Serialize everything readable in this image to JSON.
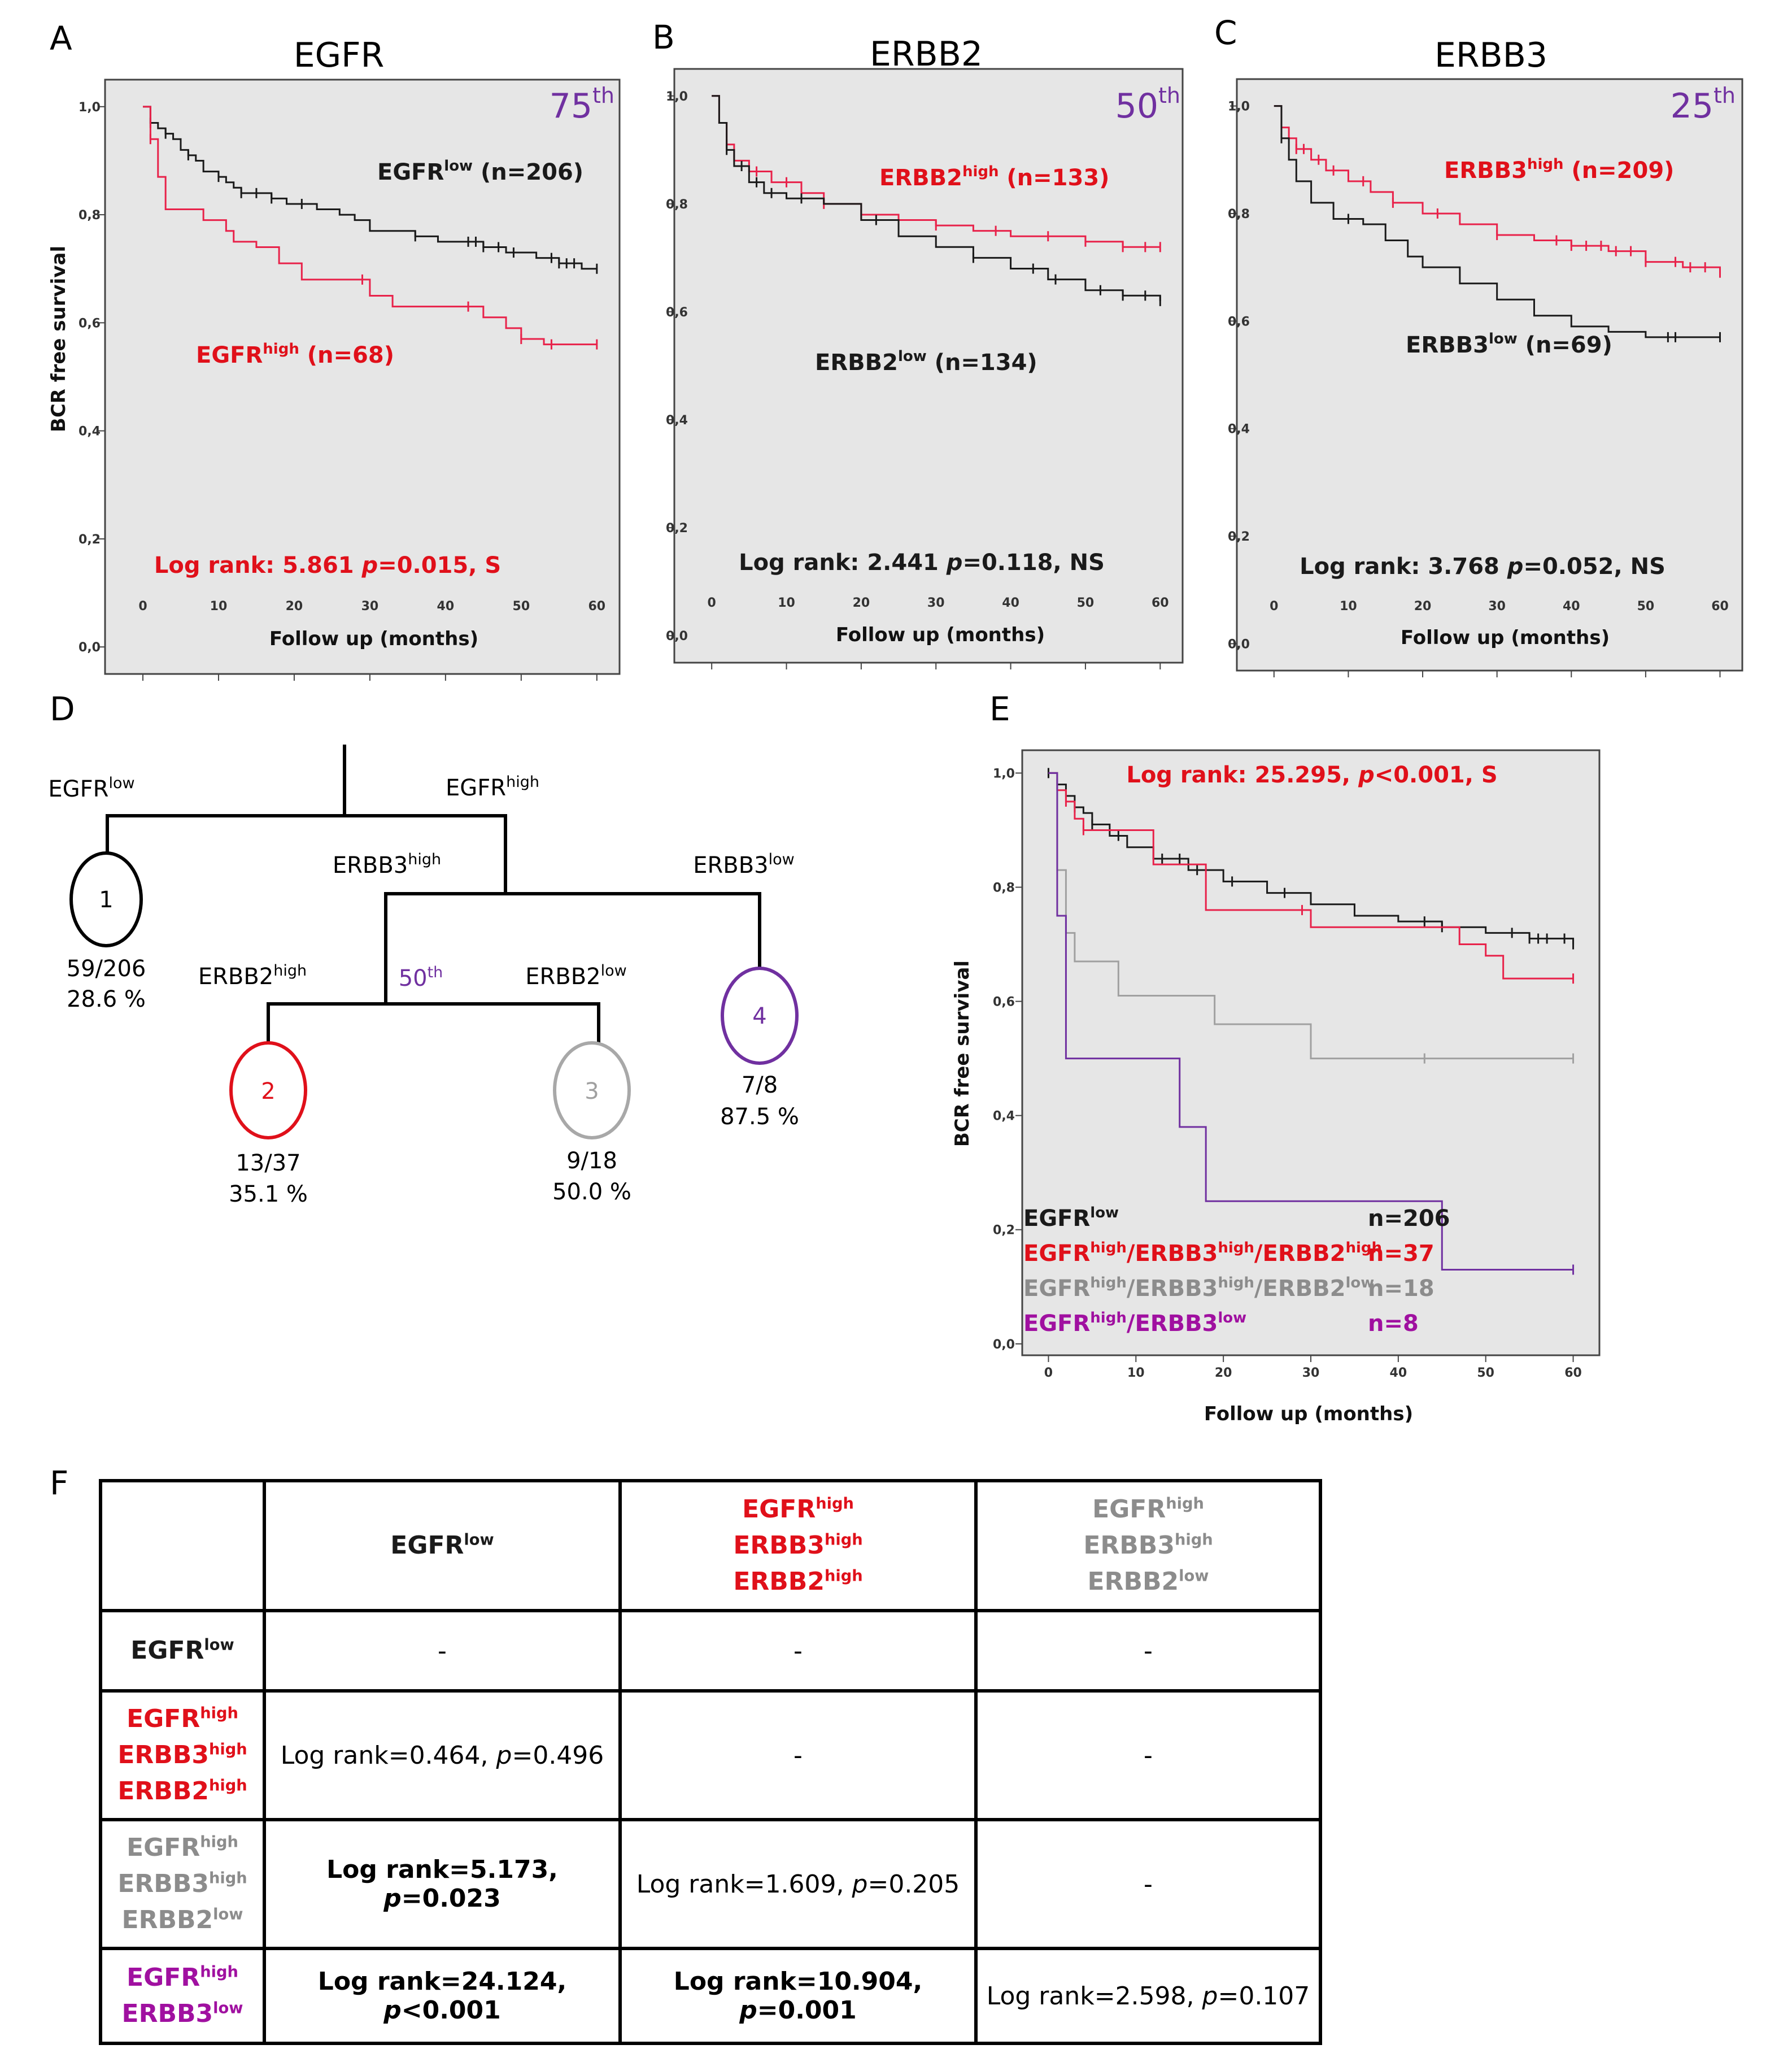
{
  "panels": {
    "A": "A",
    "B": "B",
    "C": "C",
    "D": "D",
    "E": "E",
    "F": "F"
  },
  "colors": {
    "black": "#1a1a1a",
    "red": "#e8224a",
    "annot_red": "#e0101a",
    "purple": "#7030a0",
    "magenta": "#a010a0",
    "gray": "#8c8c8c",
    "gray_line": "#a0a0a0",
    "plot_bg": "#e6e6e6"
  },
  "chart_data": [
    {
      "type": "line",
      "panel": "A",
      "title": "EGFR",
      "percentile": "75",
      "percentile_suffix": "th",
      "xlabel": "Follow up (months)",
      "ylabel": "BCR free survival",
      "xlim": [
        -5,
        63
      ],
      "ylim": [
        -0.05,
        1.05
      ],
      "xticks": [
        "0",
        "10",
        "20",
        "30",
        "40",
        "50",
        "60"
      ],
      "yticks": [
        "0,0",
        "0,2",
        "0,4",
        "0,6",
        "0,8",
        "1,0"
      ],
      "series": [
        {
          "name": "EGFR low",
          "label_main": "EGFR",
          "label_sup": "low",
          "label_n": " (n=206)",
          "color": "black",
          "x": [
            0,
            1,
            2,
            3,
            4,
            5,
            6,
            7,
            8,
            10,
            11,
            12,
            13,
            15,
            17,
            19,
            21,
            23,
            26,
            28,
            30,
            33,
            36,
            39,
            42,
            45,
            48,
            52,
            55,
            58,
            60
          ],
          "y": [
            1.0,
            0.97,
            0.96,
            0.95,
            0.94,
            0.92,
            0.91,
            0.9,
            0.88,
            0.87,
            0.86,
            0.85,
            0.84,
            0.84,
            0.83,
            0.82,
            0.82,
            0.81,
            0.8,
            0.79,
            0.77,
            0.77,
            0.76,
            0.75,
            0.75,
            0.74,
            0.73,
            0.72,
            0.71,
            0.7,
            0.7
          ],
          "censor_x": [
            1,
            3,
            6,
            10,
            13,
            15,
            17,
            21,
            36,
            43,
            44,
            45,
            47,
            49,
            54,
            55,
            56,
            57,
            60
          ]
        },
        {
          "name": "EGFR high",
          "label_main": "EGFR",
          "label_sup": "high",
          "label_n": " (n=68)",
          "color": "red",
          "x": [
            0,
            1,
            2,
            3,
            8,
            11,
            12,
            15,
            18,
            21,
            30,
            33,
            45,
            48,
            50,
            53,
            60
          ],
          "y": [
            1.0,
            0.94,
            0.87,
            0.81,
            0.79,
            0.77,
            0.75,
            0.74,
            0.71,
            0.68,
            0.65,
            0.63,
            0.61,
            0.59,
            0.57,
            0.56,
            0.56
          ],
          "censor_x": [
            1,
            29,
            43,
            50,
            54,
            60
          ]
        }
      ],
      "annotation": {
        "text": "Log rank: 5.861 ",
        "p_italic": "p",
        "rest": "=0.015, S",
        "color": "annot_red"
      }
    },
    {
      "type": "line",
      "panel": "B",
      "title": "ERBB2",
      "percentile": "50",
      "percentile_suffix": "th",
      "xlabel": "Follow up (months)",
      "ylabel": "",
      "xlim": [
        -5,
        63
      ],
      "ylim": [
        -0.05,
        1.05
      ],
      "xticks": [
        "0",
        "10",
        "20",
        "30",
        "40",
        "50",
        "60"
      ],
      "yticks": [
        "0,0",
        "0,2",
        "0,4",
        "0,6",
        "0,8",
        "1,0"
      ],
      "series": [
        {
          "name": "ERBB2 high",
          "label_main": "ERBB2",
          "label_sup": "high",
          "label_n": " (n=133)",
          "color": "red",
          "x": [
            0,
            1,
            2,
            3,
            5,
            8,
            12,
            15,
            20,
            25,
            30,
            35,
            40,
            45,
            50,
            55,
            60
          ],
          "y": [
            1.0,
            0.95,
            0.91,
            0.88,
            0.86,
            0.84,
            0.82,
            0.8,
            0.78,
            0.77,
            0.76,
            0.75,
            0.74,
            0.74,
            0.73,
            0.72,
            0.72
          ],
          "censor_x": [
            2,
            6,
            10,
            15,
            20,
            30,
            38,
            45,
            50,
            55,
            58,
            60
          ]
        },
        {
          "name": "ERBB2 low",
          "label_main": "ERBB2",
          "label_sup": "low",
          "label_n": " (n=134)",
          "color": "black",
          "x": [
            0,
            1,
            2,
            3,
            5,
            7,
            10,
            15,
            20,
            25,
            30,
            35,
            40,
            45,
            50,
            55,
            60
          ],
          "y": [
            1.0,
            0.95,
            0.9,
            0.87,
            0.84,
            0.82,
            0.81,
            0.8,
            0.77,
            0.74,
            0.72,
            0.7,
            0.68,
            0.66,
            0.64,
            0.63,
            0.62
          ],
          "censor_x": [
            2,
            4,
            6,
            8,
            12,
            22,
            35,
            43,
            46,
            52,
            55,
            58,
            60
          ]
        }
      ],
      "annotation": {
        "text": "Log rank: 2.441 ",
        "p_italic": "p",
        "rest": "=0.118, NS",
        "color": "black"
      }
    },
    {
      "type": "line",
      "panel": "C",
      "title": "ERBB3",
      "percentile": "25",
      "percentile_suffix": "th",
      "xlabel": "Follow up (months)",
      "ylabel": "",
      "xlim": [
        -5,
        63
      ],
      "ylim": [
        -0.05,
        1.05
      ],
      "xticks": [
        "0",
        "10",
        "20",
        "30",
        "40",
        "50",
        "60"
      ],
      "yticks": [
        "0,0",
        "0,2",
        "0,4",
        "0,6",
        "0,8",
        "1,0"
      ],
      "series": [
        {
          "name": "ERBB3 high",
          "label_main": "ERBB3",
          "label_sup": "high",
          "label_n": " (n=209)",
          "color": "red",
          "x": [
            0,
            1,
            2,
            3,
            5,
            7,
            10,
            13,
            16,
            20,
            25,
            30,
            35,
            40,
            45,
            50,
            55,
            60
          ],
          "y": [
            1.0,
            0.96,
            0.94,
            0.92,
            0.9,
            0.88,
            0.86,
            0.84,
            0.82,
            0.8,
            0.78,
            0.76,
            0.75,
            0.74,
            0.73,
            0.71,
            0.7,
            0.69
          ],
          "censor_x": [
            1,
            3,
            4,
            6,
            8,
            12,
            16,
            22,
            30,
            38,
            40,
            42,
            44,
            46,
            48,
            50,
            54,
            56,
            58,
            60
          ]
        },
        {
          "name": "ERBB3 low",
          "label_main": "ERBB3",
          "label_sup": "low",
          "label_n": " (n=69)",
          "color": "black",
          "x": [
            0,
            1,
            2,
            3,
            5,
            8,
            12,
            15,
            18,
            20,
            25,
            30,
            35,
            40,
            45,
            50,
            60
          ],
          "y": [
            1.0,
            0.94,
            0.9,
            0.86,
            0.82,
            0.79,
            0.78,
            0.75,
            0.72,
            0.7,
            0.67,
            0.64,
            0.61,
            0.59,
            0.58,
            0.57,
            0.57
          ],
          "censor_x": [
            1,
            10,
            53,
            54,
            60
          ]
        }
      ],
      "annotation": {
        "text": "Log rank: 3.768 ",
        "p_italic": "p",
        "rest": "=0.052, NS",
        "color": "black"
      }
    },
    {
      "type": "line",
      "panel": "E",
      "title": "",
      "xlabel": "Follow up (months)",
      "ylabel": "BCR free survival",
      "xlim": [
        -3,
        63
      ],
      "ylim": [
        -0.02,
        1.04
      ],
      "xticks": [
        "0",
        "10",
        "20",
        "30",
        "40",
        "50",
        "60"
      ],
      "yticks": [
        "0,0",
        "0,2",
        "0,4",
        "0,6",
        "0,8",
        "1,0"
      ],
      "series": [
        {
          "name": "EGFR low",
          "color": "black",
          "x": [
            0,
            1,
            2,
            3,
            4,
            5,
            7,
            9,
            12,
            16,
            20,
            25,
            30,
            35,
            40,
            45,
            50,
            55,
            60
          ],
          "y": [
            1.0,
            0.98,
            0.96,
            0.94,
            0.93,
            0.91,
            0.89,
            0.87,
            0.85,
            0.83,
            0.81,
            0.79,
            0.77,
            0.75,
            0.74,
            0.73,
            0.72,
            0.71,
            0.7
          ],
          "censor_x": [
            0,
            1,
            3,
            5,
            8,
            13,
            15,
            17,
            21,
            27,
            43,
            45,
            53,
            55,
            56,
            57,
            59,
            60
          ]
        },
        {
          "name": "EGFR high / ERBB3 high / ERBB2 high",
          "color": "red",
          "x": [
            0,
            1,
            2,
            3,
            4,
            12,
            18,
            30,
            47,
            50,
            52,
            60
          ],
          "y": [
            1.0,
            0.97,
            0.95,
            0.92,
            0.9,
            0.84,
            0.76,
            0.73,
            0.7,
            0.68,
            0.64,
            0.64
          ],
          "censor_x": [
            2,
            4,
            29,
            60
          ]
        },
        {
          "name": "EGFR high / ERBB3 high / ERBB2 low",
          "color": "gray_line",
          "x": [
            0,
            1,
            2,
            3,
            8,
            19,
            30,
            60
          ],
          "y": [
            1.0,
            0.83,
            0.72,
            0.67,
            0.61,
            0.56,
            0.5,
            0.5
          ],
          "censor_x": [
            43,
            60
          ]
        },
        {
          "name": "EGFR high / ERBB3 low",
          "color": "purple",
          "x": [
            0,
            1,
            2,
            15,
            18,
            30,
            45,
            60
          ],
          "y": [
            1.0,
            0.75,
            0.5,
            0.38,
            0.25,
            0.25,
            0.13,
            0.13
          ],
          "censor_x": [
            60
          ]
        }
      ],
      "annotation": {
        "text": "Log rank: 25.295, ",
        "p_italic": "p",
        "rest": "<0.001, S",
        "color": "annot_red"
      },
      "legend": [
        {
          "color": "black",
          "parts": [
            {
              "t": "EGFR",
              "sup": "low"
            }
          ],
          "n": "n=206"
        },
        {
          "color": "annot_red",
          "parts": [
            {
              "t": "EGFR",
              "sup": "high"
            },
            {
              "t": "/ERBB3",
              "sup": "high"
            },
            {
              "t": "/ERBB2",
              "sup": "high"
            }
          ],
          "n": "n=37"
        },
        {
          "color": "gray",
          "parts": [
            {
              "t": "EGFR",
              "sup": "high"
            },
            {
              "t": "/ERBB3",
              "sup": "high"
            },
            {
              "t": "/ERBB2",
              "sup": "low"
            }
          ],
          "n": "n=18"
        },
        {
          "color": "magenta",
          "parts": [
            {
              "t": "EGFR",
              "sup": "high"
            },
            {
              "t": "/ERBB3",
              "sup": "low"
            }
          ],
          "n": "n=8"
        }
      ]
    }
  ],
  "tree": {
    "labels": {
      "egfr_low": {
        "main": "EGFR",
        "sup": "low"
      },
      "egfr_high": {
        "main": "EGFR",
        "sup": "high"
      },
      "erbb3_high": {
        "main": "ERBB3",
        "sup": "high"
      },
      "erbb3_low": {
        "main": "ERBB3",
        "sup": "low"
      },
      "erbb2_high": {
        "main": "ERBB2",
        "sup": "high"
      },
      "erbb2_low": {
        "main": "ERBB2",
        "sup": "low"
      },
      "cutoff": {
        "main": "50",
        "sup": "th"
      }
    },
    "nodes": [
      {
        "id": "1",
        "ratio": "59/206",
        "percent": "28.6 %",
        "color": "black"
      },
      {
        "id": "2",
        "ratio": "13/37",
        "percent": "35.1 %",
        "color": "red"
      },
      {
        "id": "3",
        "ratio": "9/18",
        "percent": "50.0 %",
        "color": "gray"
      },
      {
        "id": "4",
        "ratio": "7/8",
        "percent": "87.5 %",
        "color": "purple"
      }
    ]
  },
  "table": {
    "groups": {
      "egfr_low": {
        "color": "black",
        "lines": [
          {
            "main": "EGFR",
            "sup": "low"
          }
        ]
      },
      "triple_high": {
        "color": "annot_red",
        "lines": [
          {
            "main": "EGFR",
            "sup": "high"
          },
          {
            "main": "ERBB3",
            "sup": "high"
          },
          {
            "main": "ERBB2",
            "sup": "high"
          }
        ]
      },
      "erbb2_low_group": {
        "color": "gray",
        "lines": [
          {
            "main": "EGFR",
            "sup": "high"
          },
          {
            "main": "ERBB3",
            "sup": "high"
          },
          {
            "main": "ERBB2",
            "sup": "low"
          }
        ]
      },
      "erbb3_low_group": {
        "color": "magenta",
        "lines": [
          {
            "main": "EGFR",
            "sup": "high"
          },
          {
            "main": "ERBB3",
            "sup": "low"
          }
        ]
      }
    },
    "col_groups": [
      "egfr_low",
      "triple_high",
      "erbb2_low_group"
    ],
    "row_groups": [
      "egfr_low",
      "triple_high",
      "erbb2_low_group",
      "erbb3_low_group"
    ],
    "cells": [
      [
        {
          "text": "-"
        },
        {
          "text": "-"
        },
        {
          "text": "-"
        }
      ],
      [
        {
          "pre": "Log rank=0.464, ",
          "p": "p",
          "post": "=0.496",
          "bold": false
        },
        {
          "text": "-"
        },
        {
          "text": "-"
        }
      ],
      [
        {
          "pre": "Log rank=5.173, ",
          "p": "p",
          "post": "=0.023",
          "bold": true
        },
        {
          "pre": "Log rank=1.609, ",
          "p": "p",
          "post": "=0.205",
          "bold": false
        },
        {
          "text": "-"
        }
      ],
      [
        {
          "pre": "Log rank=24.124, ",
          "p": "p",
          "post": "<0.001",
          "bold": true
        },
        {
          "pre": "Log rank=10.904, ",
          "p": "p",
          "post": "=0.001",
          "bold": true
        },
        {
          "pre": "Log rank=2.598, ",
          "p": "p",
          "post": "=0.107",
          "bold": false
        }
      ]
    ]
  }
}
